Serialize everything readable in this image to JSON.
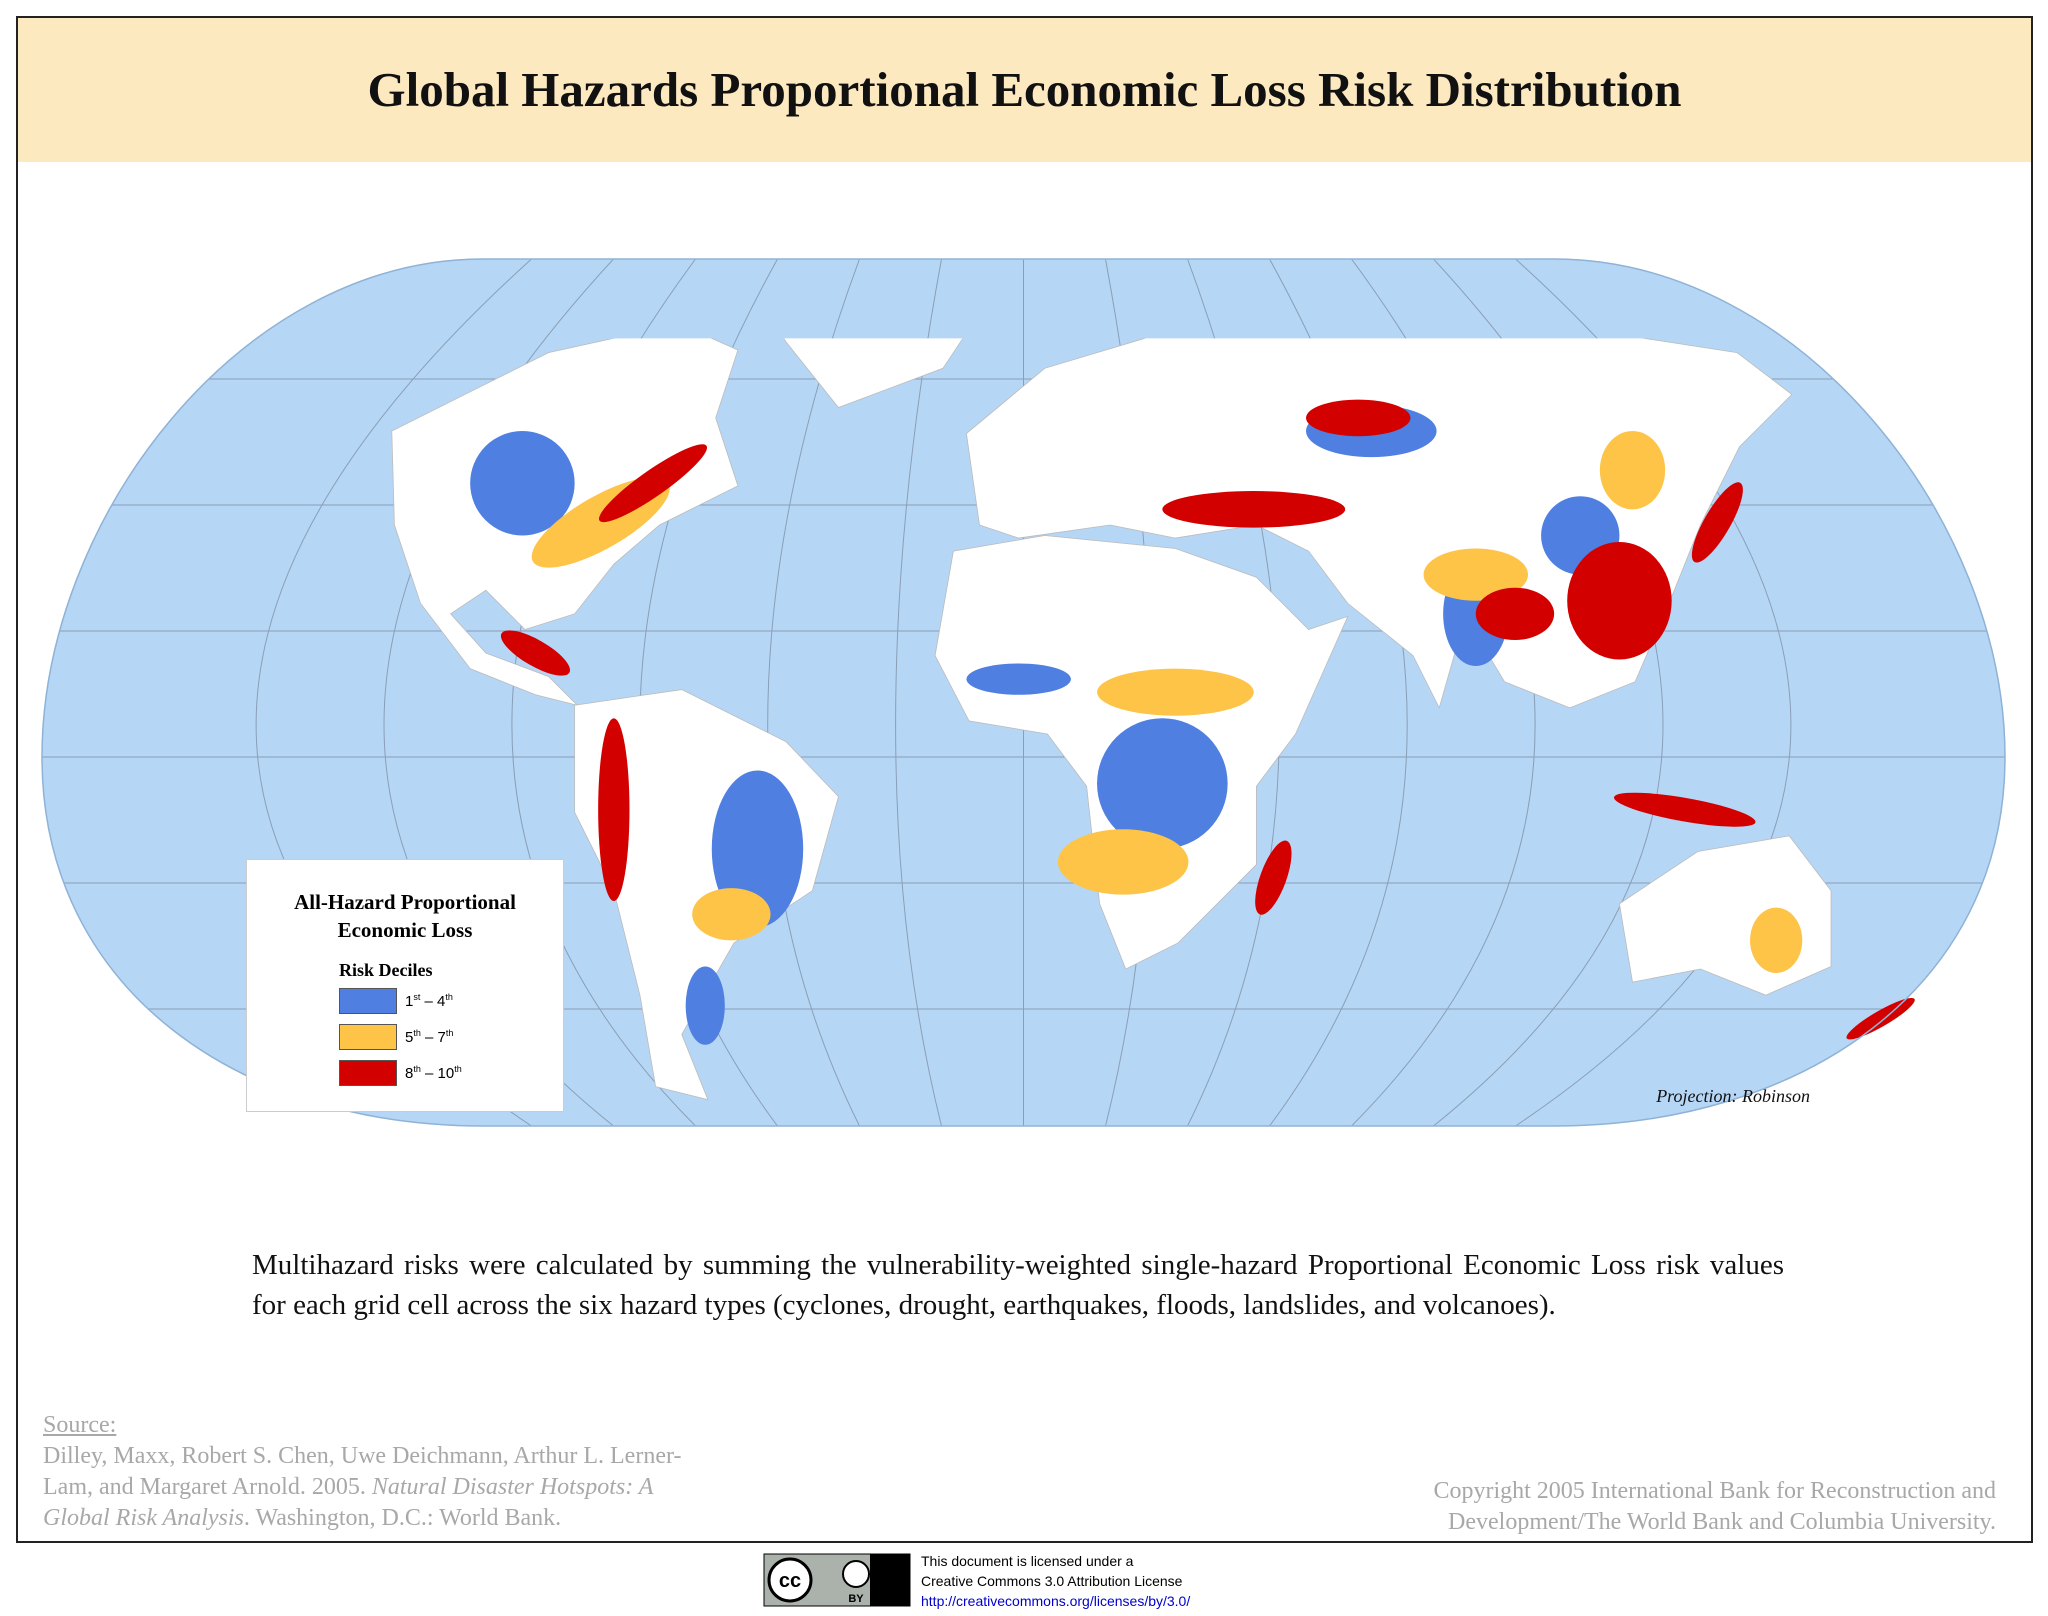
{
  "header": {
    "title": "Global Hazards Proportional Economic Loss Risk Distribution"
  },
  "legend": {
    "title_lines": [
      "All-Hazard Proportional",
      "Economic Loss"
    ],
    "subtitle": "Risk Deciles",
    "items": [
      {
        "color": "#4f7fe0",
        "parts": [
          "1",
          "st",
          " – 4",
          "th"
        ]
      },
      {
        "color": "#fdc448",
        "parts": [
          "5",
          "th",
          " – 7",
          "th"
        ]
      },
      {
        "color": "#d30000",
        "parts": [
          "8",
          "th",
          " – 10",
          "th"
        ]
      }
    ]
  },
  "map": {
    "projection": "Projection: Robinson"
  },
  "description": "Multihazard risks were calculated by summing the vulnerability-weighted single-hazard Proportional Economic Loss risk values for each grid cell across the six hazard types (cyclones, drought, earthquakes, floods, landslides, and volcanoes).",
  "source": {
    "heading": "Source:",
    "authors": "Dilley, Maxx, Robert S. Chen, Uwe Deichmann, Arthur L. Lerner-Lam, and Margaret Arnold. 2005.",
    "book_title": "Natural Disaster Hotspots: A Global Risk Analysis",
    "publisher": ". Washington, D.C.: World Bank."
  },
  "copyright": [
    "Copyright 2005 International Bank for Reconstruction and",
    "Development/The World Bank and Columbia University."
  ],
  "license": {
    "badge": [
      "cc",
      "BY"
    ],
    "lines": [
      "This document is licensed under a",
      "Creative Commons 3.0 Attribution License",
      "http://creativecommons.org/licenses/by/3.0/"
    ]
  }
}
